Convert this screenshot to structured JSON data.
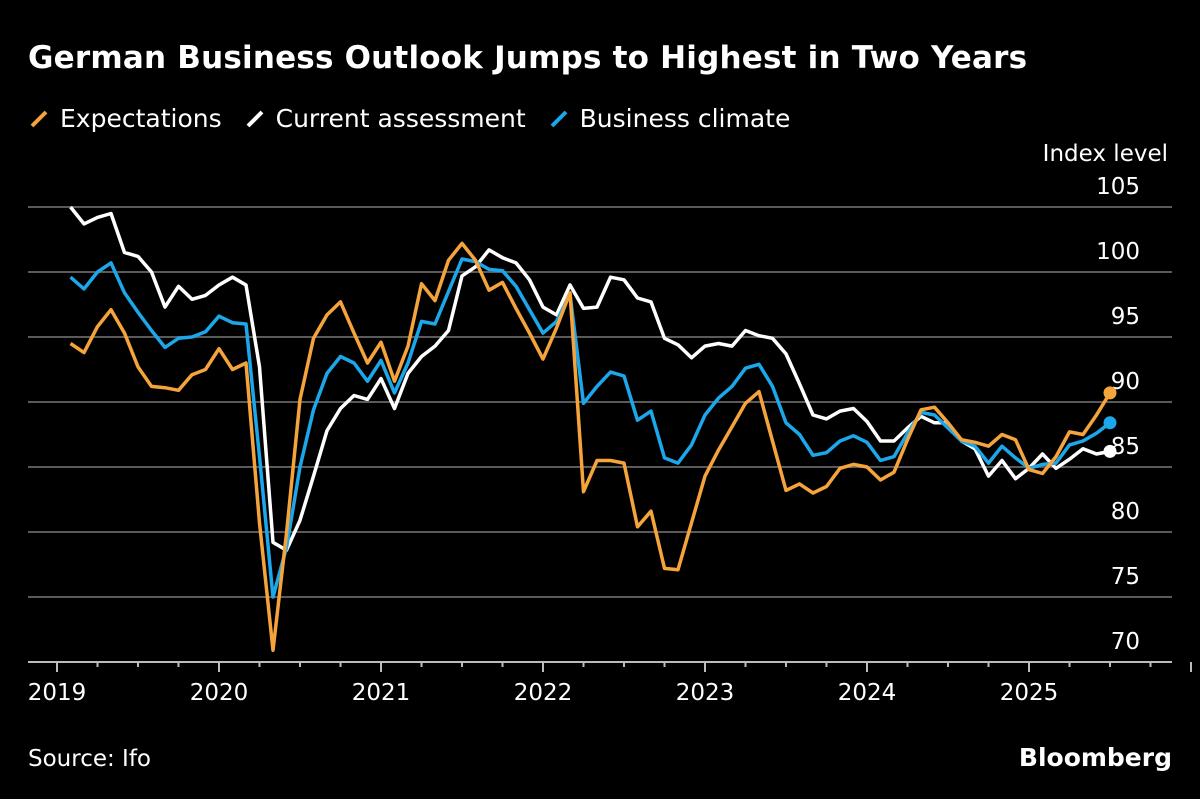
{
  "title": "German Business Outlook Jumps to Highest in Two Years",
  "source": "Source: Ifo",
  "brand": "Bloomberg",
  "legend": [
    {
      "name": "Expectations",
      "color": "#f5a33b"
    },
    {
      "name": "Current assessment",
      "color": "#ffffff"
    },
    {
      "name": "Business climate",
      "color": "#1ba7ea"
    }
  ],
  "chart_data": {
    "type": "line",
    "title": "German Business Outlook Jumps to Highest in Two Years",
    "ylabel": "Index level",
    "ylim": [
      70,
      105
    ],
    "yticks": [
      70,
      75,
      80,
      85,
      90,
      95,
      100,
      105
    ],
    "xticks": [
      "2019",
      "2020",
      "2021",
      "2022",
      "2023",
      "2024",
      "2025"
    ],
    "xlim": [
      "2019-01",
      "2025-12"
    ],
    "grid": true,
    "legend_position": "top-left",
    "x": [
      "2019-01",
      "2019-02",
      "2019-03",
      "2019-04",
      "2019-05",
      "2019-06",
      "2019-07",
      "2019-08",
      "2019-09",
      "2019-10",
      "2019-11",
      "2019-12",
      "2020-01",
      "2020-02",
      "2020-03",
      "2020-04",
      "2020-05",
      "2020-06",
      "2020-07",
      "2020-08",
      "2020-09",
      "2020-10",
      "2020-11",
      "2020-12",
      "2021-01",
      "2021-02",
      "2021-03",
      "2021-04",
      "2021-05",
      "2021-06",
      "2021-07",
      "2021-08",
      "2021-09",
      "2021-10",
      "2021-11",
      "2021-12",
      "2022-01",
      "2022-02",
      "2022-03",
      "2022-04",
      "2022-05",
      "2022-06",
      "2022-07",
      "2022-08",
      "2022-09",
      "2022-10",
      "2022-11",
      "2022-12",
      "2023-01",
      "2023-02",
      "2023-03",
      "2023-04",
      "2023-05",
      "2023-06",
      "2023-07",
      "2023-08",
      "2023-09",
      "2023-10",
      "2023-11",
      "2023-12",
      "2024-01",
      "2024-02",
      "2024-03",
      "2024-04",
      "2024-05",
      "2024-06",
      "2024-07",
      "2024-08",
      "2024-09",
      "2024-10",
      "2024-11",
      "2024-12",
      "2025-01",
      "2025-02",
      "2025-03",
      "2025-04",
      "2025-05",
      "2025-06"
    ],
    "series": [
      {
        "name": "Current assessment",
        "color": "#ffffff",
        "values": [
          105.0,
          103.7,
          104.2,
          104.5,
          101.5,
          101.2,
          100.0,
          97.3,
          98.9,
          97.9,
          98.2,
          99.0,
          99.6,
          99.0,
          92.7,
          79.2,
          78.6,
          80.9,
          84.3,
          87.8,
          89.5,
          90.5,
          90.2,
          91.8,
          89.5,
          92.2,
          93.5,
          94.3,
          95.5,
          99.7,
          100.4,
          101.7,
          101.1,
          100.7,
          99.4,
          97.3,
          96.7,
          99.0,
          97.2,
          97.3,
          99.6,
          99.4,
          98.0,
          97.7,
          94.9,
          94.4,
          93.4,
          94.3,
          94.5,
          94.3,
          95.5,
          95.1,
          94.9,
          93.7,
          91.4,
          89.0,
          88.7,
          89.3,
          89.5,
          88.5,
          87.0,
          87.0,
          88.0,
          88.9,
          88.4,
          88.4,
          87.0,
          86.4,
          84.3,
          85.5,
          84.1,
          84.9,
          86.0,
          84.9,
          85.6,
          86.4,
          86.0,
          86.2
        ]
      },
      {
        "name": "Business climate",
        "color": "#1ba7ea",
        "values": [
          99.6,
          98.7,
          100.0,
          100.7,
          98.4,
          96.9,
          95.5,
          94.2,
          94.9,
          95.0,
          95.4,
          96.6,
          96.1,
          96.0,
          85.8,
          75.0,
          78.8,
          85.0,
          89.4,
          92.2,
          93.5,
          93.0,
          91.6,
          93.2,
          90.7,
          93.0,
          96.2,
          96.0,
          98.5,
          101.0,
          100.8,
          100.2,
          100.1,
          98.9,
          97.1,
          95.3,
          96.2,
          98.3,
          89.9,
          91.2,
          92.3,
          92.0,
          88.6,
          89.3,
          85.7,
          85.3,
          86.7,
          89.0,
          90.3,
          91.2,
          92.6,
          92.9,
          91.2,
          88.4,
          87.5,
          85.9,
          86.1,
          87.0,
          87.4,
          86.9,
          85.5,
          85.8,
          87.6,
          89.2,
          89.0,
          88.0,
          87.0,
          86.6,
          85.3,
          86.6,
          85.7,
          84.9,
          85.2,
          85.3,
          86.7,
          87.0,
          87.6,
          88.4
        ]
      },
      {
        "name": "Expectations",
        "color": "#f5a33b",
        "values": [
          94.5,
          93.8,
          95.8,
          97.1,
          95.3,
          92.7,
          91.2,
          91.1,
          90.9,
          92.1,
          92.5,
          94.1,
          92.5,
          93.0,
          80.7,
          70.9,
          79.9,
          90.2,
          94.9,
          96.7,
          97.7,
          95.3,
          93.0,
          94.6,
          91.6,
          94.3,
          99.1,
          97.8,
          100.9,
          102.2,
          100.9,
          98.6,
          99.2,
          97.2,
          95.3,
          93.3,
          95.7,
          98.4,
          83.1,
          85.5,
          85.5,
          85.3,
          80.4,
          81.6,
          77.2,
          77.1,
          80.7,
          84.3,
          86.3,
          88.1,
          89.9,
          90.8,
          87.0,
          83.2,
          83.7,
          83.0,
          83.5,
          84.9,
          85.2,
          85.0,
          84.0,
          84.6,
          87.1,
          89.4,
          89.6,
          88.4,
          87.1,
          86.9,
          86.6,
          87.5,
          87.1,
          84.8,
          84.5,
          85.8,
          87.7,
          87.5,
          89.0,
          90.7
        ]
      }
    ]
  }
}
